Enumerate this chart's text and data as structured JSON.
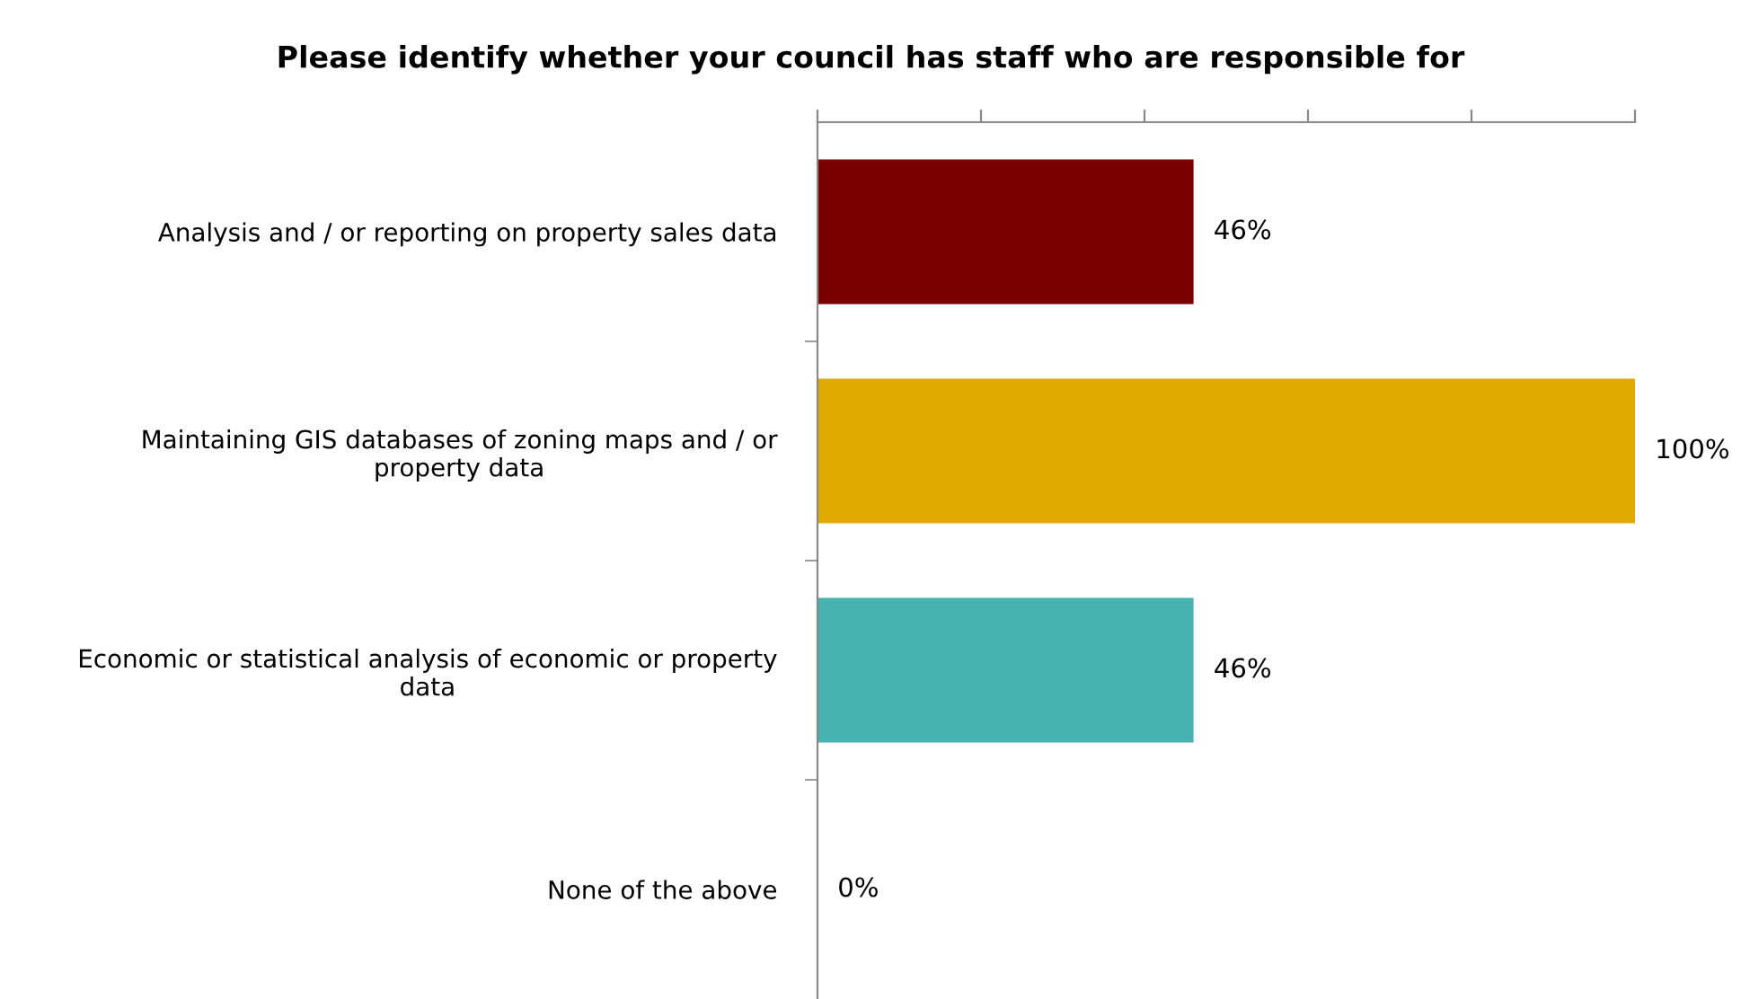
{
  "chart_data": {
    "type": "bar",
    "orientation": "horizontal",
    "title": "Please identify whether your council has staff who are responsible for",
    "categories": [
      "Analysis and / or reporting on property sales data",
      "Maintaining GIS databases of zoning maps and / or\nproperty data",
      "Economic or statistical analysis of economic or property\ndata",
      "None of the above"
    ],
    "values": [
      46,
      100,
      46,
      0
    ],
    "colors": [
      "#7a0000",
      "#e0aa00",
      "#47b3b0",
      "#7a0000"
    ],
    "value_labels": [
      "46%",
      "100%",
      "46%",
      "0%"
    ],
    "xlim": [
      0,
      100
    ],
    "xticks": [
      {
        "value": 0,
        "label": null
      },
      {
        "value": 20,
        "label": null
      },
      {
        "value": 40,
        "label": null
      },
      {
        "value": 60,
        "label": null
      },
      {
        "value": 80,
        "label": null
      },
      {
        "value": 100,
        "label": null
      }
    ],
    "tick_labels": "y",
    "grid": false,
    "legend": false
  }
}
